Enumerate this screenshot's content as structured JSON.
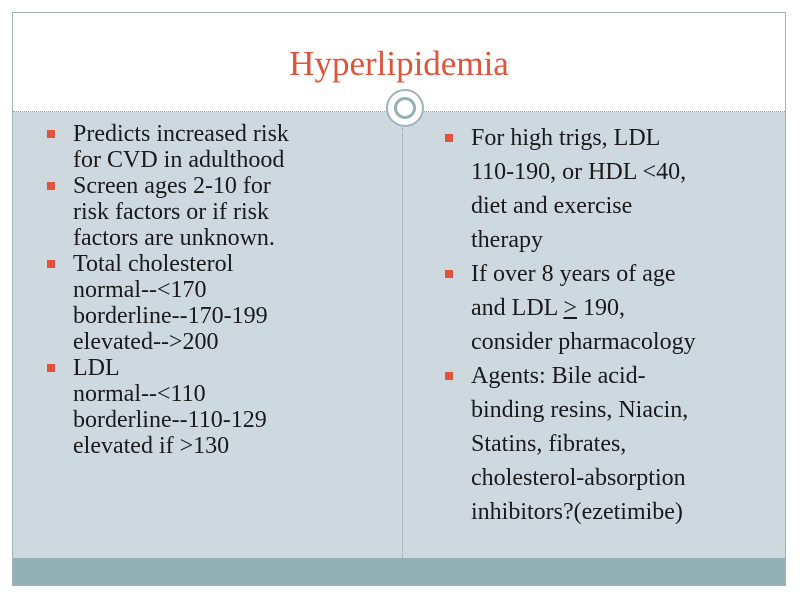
{
  "title": "Hyperlipidemia",
  "colors": {
    "title": "#e1533a",
    "bullet": "#e1533a",
    "body_background": "#cdd9df",
    "bottom_band": "#94b0b7",
    "text": "#1a1a1a"
  },
  "left_column": {
    "items": [
      {
        "lines": [
          "Predicts increased risk",
          "for CVD in adulthood"
        ]
      },
      {
        "lines": [
          "Screen ages 2-10 for",
          "risk factors or if risk",
          "factors are unknown."
        ]
      },
      {
        "lines": [
          "Total cholesterol",
          "normal--<170",
          "borderline--170-199",
          "elevated-->200"
        ]
      },
      {
        "lines": [
          "LDL",
          "normal--<110",
          "borderline--110-129",
          "elevated if >130"
        ]
      }
    ]
  },
  "right_column": {
    "items": [
      {
        "lines": [
          "For high trigs, LDL",
          "110-190, or HDL <40,",
          "diet and exercise",
          "therapy"
        ]
      },
      {
        "line1": "If over 8 years of age",
        "line2_pre": "and LDL ",
        "line2_underlined": ">",
        "line2_post": " 190,",
        "line3": "consider pharmacology"
      },
      {
        "lines": [
          "Agents: Bile acid-",
          "binding resins, Niacin,",
          "Statins, fibrates,",
          "cholesterol-absorption",
          "inhibitors?(ezetimibe)"
        ]
      }
    ]
  }
}
